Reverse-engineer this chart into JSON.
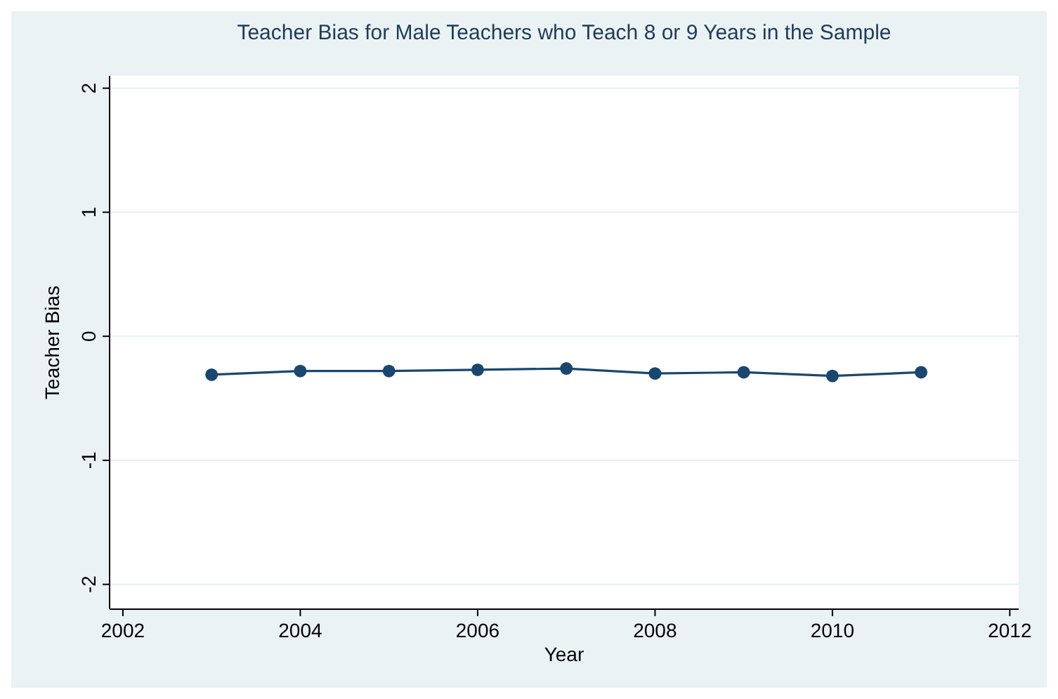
{
  "chart_data": {
    "type": "line",
    "title": "Teacher Bias for Male Teachers who Teach 8 or 9 Years in the Sample",
    "xlabel": "Year",
    "ylabel": "Teacher Bias",
    "x": [
      2003,
      2004,
      2005,
      2006,
      2007,
      2008,
      2009,
      2010,
      2011
    ],
    "series": [
      {
        "color": "#1a476f",
        "values": [
          -0.31,
          -0.28,
          -0.28,
          -0.27,
          -0.26,
          -0.3,
          -0.29,
          -0.32,
          -0.29
        ]
      }
    ],
    "xlim": [
      2001.85,
      2012.1
    ],
    "xticks": [
      2002,
      2004,
      2006,
      2008,
      2010,
      2012
    ],
    "ylim": [
      -2.2,
      2.1
    ],
    "yticks": [
      -2,
      -1,
      0,
      1,
      2
    ],
    "grid": "y",
    "marker": "circle",
    "line_style": "solid"
  }
}
